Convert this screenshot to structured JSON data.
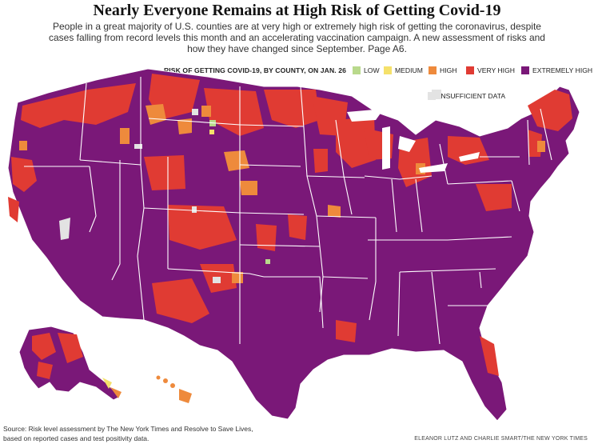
{
  "title": "Nearly Everyone Remains at High Risk of Getting Covid-19",
  "subtitle": "People in a great majority of U.S. counties are at very high or extremely high risk of getting the coronavirus, despite cases falling from record levels this month and an accelerating vaccination campaign. A new assessment of risks and how they have changed since September. Page A6.",
  "legend": {
    "title": "RISK OF GETTING COVID-19, BY COUNTY, ON JAN. 26",
    "items": [
      {
        "label": "LOW",
        "color": "#b9d98c"
      },
      {
        "label": "MEDIUM",
        "color": "#f5e16b"
      },
      {
        "label": "HIGH",
        "color": "#ee8a3c"
      },
      {
        "label": "VERY HIGH",
        "color": "#e03b33"
      },
      {
        "label": "EXTREMELY HIGH",
        "color": "#7a1878"
      },
      {
        "label": "INSUFFICIENT DATA",
        "color": "#e3e3e3"
      }
    ]
  },
  "source": "Source: Risk level assessment by The New York Times and Resolve to Save Lives, based on reported cases and test positivity data.",
  "credit": "ELEANOR LUTZ AND CHARLIE SMART/THE NEW YORK TIMES"
}
